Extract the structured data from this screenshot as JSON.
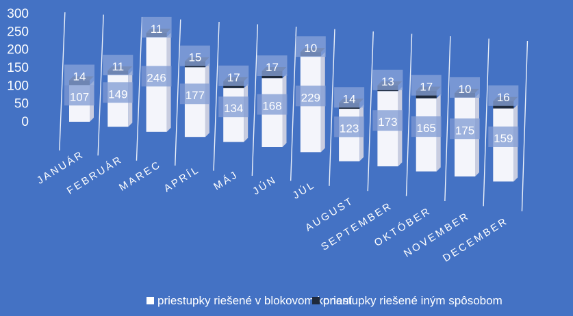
{
  "chart_data": {
    "type": "bar",
    "stacked": true,
    "view": "3d",
    "categories": [
      "JANUÁR",
      "FEBRUÁR",
      "MAREC",
      "APRÍL",
      "MÁJ",
      "JÚN",
      "JÚL",
      "AUGUST",
      "SEPTEMBER",
      "OKTÓBER",
      "NOVEMBER",
      "DECEMBER"
    ],
    "series": [
      {
        "name": "priestupky riešené v blokovom konaní",
        "values": [
          107,
          149,
          246,
          177,
          134,
          168,
          229,
          123,
          173,
          165,
          175,
          159
        ],
        "color": "#ffffff"
      },
      {
        "name": "priestupky riešené iným spôsobom",
        "values": [
          14,
          11,
          11,
          15,
          17,
          17,
          10,
          14,
          13,
          17,
          10,
          16
        ],
        "color": "#1f2a3c"
      }
    ],
    "y_ticks": [
      "0",
      "50",
      "100",
      "150",
      "200",
      "250",
      "300"
    ],
    "ylim": [
      0,
      300
    ],
    "grid": false,
    "legend_position": "bottom",
    "background": "#4472c4",
    "title": "",
    "xlabel": "",
    "ylabel": ""
  }
}
